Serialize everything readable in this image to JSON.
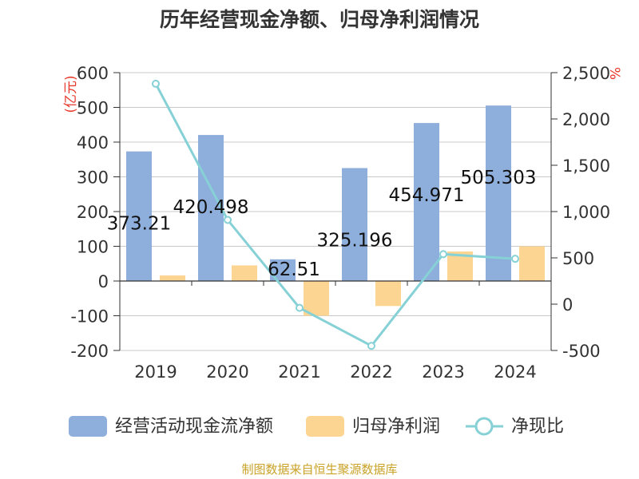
{
  "chart_data": {
    "type": "bar",
    "title": "历年经营现金净额、归母净利润情况",
    "categories": [
      "2019",
      "2020",
      "2021",
      "2022",
      "2023",
      "2024"
    ],
    "series": [
      {
        "name": "经营活动现金流净额",
        "type": "bar",
        "axis": "left",
        "color": "#8eaedc",
        "values": [
          373.21,
          420.498,
          62.51,
          325.196,
          454.971,
          505.303
        ],
        "labels": [
          "373.21",
          "420.498",
          "62.51",
          "325.196",
          "454.971",
          "505.303"
        ]
      },
      {
        "name": "归母净利润",
        "type": "bar",
        "axis": "left",
        "color": "#fdd592",
        "values": [
          16,
          45,
          -100,
          -72,
          85,
          100
        ]
      },
      {
        "name": "净现比",
        "type": "line",
        "axis": "right",
        "color": "#86d1d6",
        "values": [
          2380,
          910,
          -40,
          -450,
          540,
          490
        ]
      }
    ],
    "y_left": {
      "label": "(亿元)",
      "min": -200,
      "max": 600,
      "ticks": [
        600,
        500,
        400,
        300,
        200,
        100,
        0,
        -100,
        -200
      ],
      "tick_labels": [
        "600",
        "500",
        "400",
        "300",
        "200",
        "100",
        "0",
        "-100",
        "-200"
      ]
    },
    "y_right": {
      "label": "%",
      "min": -500,
      "max": 2500,
      "ticks": [
        2500,
        2000,
        1500,
        1000,
        500,
        0,
        -500
      ],
      "tick_labels": [
        "2,500",
        "2,000",
        "1,500",
        "1,000",
        "500",
        "0",
        "-500"
      ]
    },
    "grid": true,
    "legend_position": "bottom",
    "source": "制图数据来自恒生聚源数据库"
  }
}
